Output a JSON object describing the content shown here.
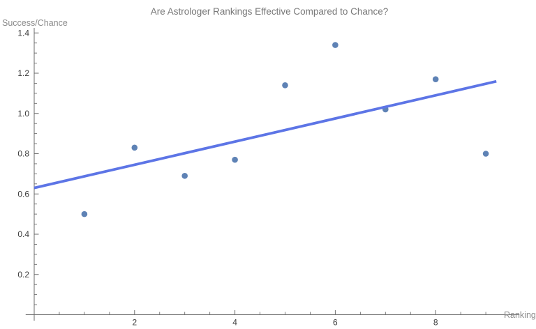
{
  "page": {
    "background": "#ffffff"
  },
  "chart_data": {
    "type": "scatter",
    "title": "Are Astrologer Rankings Effective Compared to Chance?",
    "xlabel": "Ranking",
    "ylabel": "Success/Chance",
    "x": [
      1,
      2,
      3,
      4,
      5,
      6,
      7,
      8,
      9
    ],
    "series": [
      {
        "name": "success-chance-ratio",
        "type": "scatter",
        "values": [
          0.5,
          0.83,
          0.69,
          0.77,
          1.14,
          1.34,
          1.02,
          1.17,
          0.8
        ],
        "color": "#5e82b5",
        "point_radius": 4.3
      },
      {
        "name": "linear-fit",
        "type": "line",
        "fit": {
          "intercept": 0.63,
          "slope": 0.0575
        },
        "x_start": 0,
        "x_end": 9.21,
        "color": "#5d75e6",
        "stroke_width": 3.8
      }
    ],
    "axes": {
      "color": "#6b6b6b",
      "tick_label_color": "#3d3d3d",
      "x": {
        "major_ticks": [
          2,
          4,
          6,
          8
        ],
        "major_tick_labels": [
          "2",
          "4",
          "6",
          "8"
        ],
        "minor_tick_step": 0.5,
        "minor_tick_min": 0.5,
        "minor_tick_max": 9,
        "axis_range": [
          -0.17,
          9.67
        ]
      },
      "y": {
        "major_ticks": [
          0.2,
          0.4,
          0.6,
          0.8,
          1.0,
          1.2,
          1.4
        ],
        "major_tick_labels": [
          "0.2",
          "0.4",
          "0.6",
          "0.8",
          "1.0",
          "1.2",
          "1.4"
        ],
        "minor_tick_step": 0.05,
        "minor_tick_min": 0.05,
        "minor_tick_max": 1.4,
        "axis_range": [
          -0.03,
          1.425
        ]
      }
    },
    "grid": false,
    "legend": null
  }
}
